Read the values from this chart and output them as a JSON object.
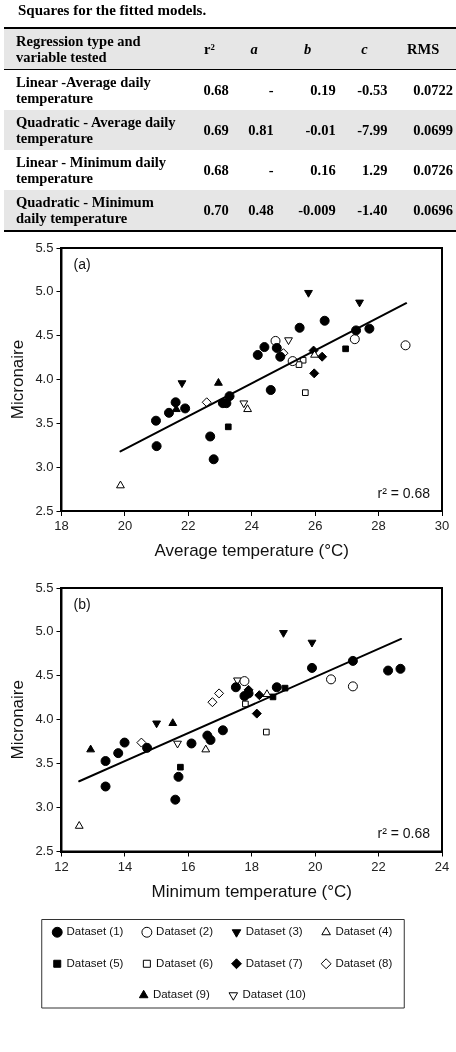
{
  "chart_data": [
    {
      "type": "other",
      "title": "Squares for the fitted models.",
      "annotations": [
        "Regression type and variable tested",
        "r²",
        "a",
        "b",
        "c",
        "RMS",
        "Linear -Average daily temperature",
        "0.68",
        "-",
        "0.19",
        "-0.53",
        "0.0722",
        "Quadratic - Average daily temperature",
        "0.69",
        "0.81",
        "-0.01",
        "-7.99",
        "0.0699",
        "Linear - Minimum daily temperature",
        "0.68",
        "-",
        "0.16",
        "1.29",
        "0.0726",
        "Quadratic - Minimum daily temperature",
        "0.70",
        "0.48",
        "-0.009",
        "-1.40",
        "0.0696"
      ]
    },
    {
      "type": "scatter",
      "xlabel": "Average temperature (°C)",
      "ylabel": "Micronaire",
      "xlim": [
        18,
        30
      ],
      "ylim": [
        2.5,
        5.5
      ],
      "xticks": [
        18,
        20,
        22,
        24,
        26,
        28,
        30
      ],
      "yticks": [
        2.5,
        {
          "value": 3,
          "label": "3.0"
        },
        3.5,
        {
          "value": 4,
          "label": "4.0"
        },
        4.5,
        {
          "value": 5,
          "label": "5.0"
        },
        5.5
      ],
      "grid": false,
      "legend": false,
      "annotations": [
        "(a)",
        "r² = 0.68"
      ],
      "series": [
        {
          "color": "#000000",
          "marker": "circle",
          "x": [
            20.98,
            21.0,
            21.39,
            21.6,
            21.9,
            22.69,
            22.8,
            23.09,
            23.2,
            23.3,
            24.19,
            24.4,
            24.79,
            24.9,
            24.6,
            25.51,
            26.3,
            27.29,
            27.71
          ],
          "values": [
            3.53,
            3.24,
            3.62,
            3.74,
            3.67,
            3.35,
            3.09,
            3.73,
            3.73,
            3.81,
            4.28,
            4.37,
            4.36,
            4.26,
            3.88,
            4.59,
            4.67,
            4.56,
            4.58
          ]
        },
        {
          "color": "#000000",
          "marker": "circle-open",
          "x": [
            24.75,
            25.29,
            27.25,
            28.85
          ],
          "values": [
            4.44,
            4.21,
            4.46,
            4.39
          ]
        },
        {
          "color": "#000000",
          "marker": "triangle-down",
          "x": [
            21.8,
            25.79,
            27.4
          ],
          "values": [
            3.96,
            4.99,
            4.88
          ]
        },
        {
          "color": "#000000",
          "marker": "triangle-open",
          "x": [
            19.86,
            23.87,
            25.98
          ],
          "values": [
            2.79,
            3.66,
            4.28
          ]
        },
        {
          "color": "#000000",
          "marker": "square",
          "x": [
            23.26,
            26.96
          ],
          "values": [
            3.46,
            4.35
          ]
        },
        {
          "color": "#000000",
          "marker": "square-open",
          "x": [
            25.69,
            25.62,
            25.49
          ],
          "values": [
            3.85,
            4.22,
            4.17
          ]
        },
        {
          "color": "#000000",
          "marker": "diamond",
          "x": [
            25.95,
            26.22,
            25.97
          ],
          "values": [
            4.33,
            4.26,
            4.07
          ]
        },
        {
          "color": "#000000",
          "marker": "diamond-open",
          "x": [
            22.58,
            25.0
          ],
          "values": [
            3.74,
            4.3
          ]
        },
        {
          "color": "#000000",
          "marker": "triangle",
          "x": [
            22.95,
            21.62
          ],
          "values": [
            3.96,
            3.66
          ]
        },
        {
          "color": "#000000",
          "marker": "triangle-down-open",
          "x": [
            25.16,
            23.75
          ],
          "values": [
            4.45,
            3.73
          ]
        },
        {
          "type": "line",
          "color": "#000000",
          "x": [
            19.86,
            28.87
          ],
          "values": [
            3.18,
            4.87
          ]
        }
      ]
    },
    {
      "type": "scatter",
      "xlabel": "Minimum temperature (°C)",
      "ylabel": "Micronaire",
      "xlim": [
        12,
        24
      ],
      "ylim": [
        2.5,
        5.5
      ],
      "xticks": [
        12,
        14,
        16,
        18,
        20,
        22,
        24
      ],
      "yticks": [
        2.5,
        {
          "value": 3,
          "label": "3.0"
        },
        3.5,
        {
          "value": 4,
          "label": "4.0"
        },
        4.5,
        {
          "value": 5,
          "label": "5.0"
        },
        5.5
      ],
      "grid": false,
      "legend": "bottom",
      "annotations": [
        "(b)",
        "r² = 0.68"
      ],
      "series": [
        {
          "name": "Dataset (1)",
          "color": "#000000",
          "marker": "circle",
          "x": [
            13.39,
            13.39,
            13.79,
            13.99,
            14.7,
            15.69,
            15.59,
            16.1,
            16.6,
            16.7,
            17.09,
            17.5,
            17.77,
            17.9,
            18.79,
            19.9,
            21.19,
            22.3,
            22.69
          ],
          "values": [
            3.53,
            3.24,
            3.62,
            3.74,
            3.68,
            3.35,
            3.09,
            3.73,
            3.82,
            3.77,
            3.88,
            4.37,
            4.27,
            4.3,
            4.37,
            4.59,
            4.67,
            4.56,
            4.58
          ]
        },
        {
          "name": "Dataset (2)",
          "color": "#000000",
          "marker": "circle-open",
          "x": [
            17.77,
            20.5,
            21.19
          ],
          "values": [
            4.44,
            4.46,
            4.38
          ]
        },
        {
          "name": "Dataset (3)",
          "color": "#000000",
          "marker": "triangle-down",
          "x": [
            15.0,
            19.0,
            19.9
          ],
          "values": [
            3.96,
            4.99,
            4.88
          ]
        },
        {
          "name": "Dataset (4)",
          "color": "#000000",
          "marker": "triangle-open",
          "x": [
            12.56,
            16.55,
            18.48
          ],
          "values": [
            2.79,
            3.66,
            4.29
          ]
        },
        {
          "name": "Dataset (5)",
          "color": "#000000",
          "marker": "square",
          "x": [
            15.75,
            18.67,
            19.05
          ],
          "values": [
            3.46,
            4.26,
            4.36
          ]
        },
        {
          "name": "Dataset (6)",
          "color": "#000000",
          "marker": "square-open",
          "x": [
            18.46,
            17.8
          ],
          "values": [
            3.86,
            4.18
          ]
        },
        {
          "name": "Dataset (7)",
          "color": "#000000",
          "marker": "diamond",
          "x": [
            17.9,
            18.24,
            18.16
          ],
          "values": [
            4.34,
            4.28,
            4.07
          ]
        },
        {
          "name": "Dataset (8)",
          "color": "#000000",
          "marker": "diamond-open",
          "x": [
            14.52,
            16.76,
            16.97
          ],
          "values": [
            3.74,
            4.2,
            4.3
          ]
        },
        {
          "name": "Dataset (9)",
          "color": "#000000",
          "marker": "triangle",
          "x": [
            12.92,
            15.51
          ],
          "values": [
            3.66,
            3.96
          ]
        },
        {
          "name": "Dataset (10)",
          "color": "#000000",
          "marker": "triangle-down-open",
          "x": [
            17.55,
            15.66
          ],
          "values": [
            4.45,
            3.73
          ]
        },
        {
          "type": "line",
          "color": "#000000",
          "x": [
            12.56,
            22.71
          ],
          "values": [
            3.3,
            4.92
          ]
        }
      ]
    }
  ]
}
